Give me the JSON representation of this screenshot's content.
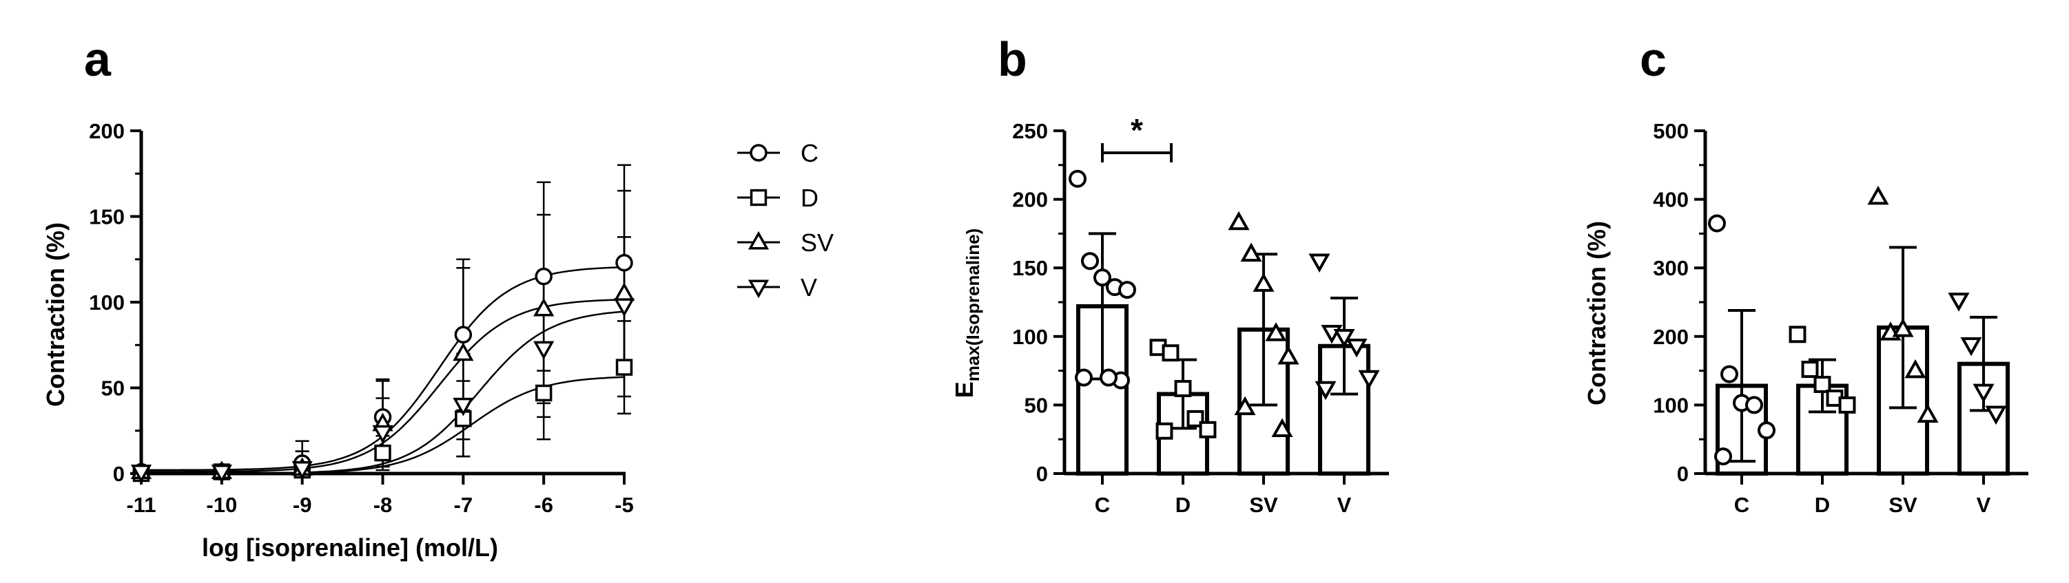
{
  "chart_data": [
    {
      "panel": "a",
      "type": "line",
      "xlabel": "log [isoprenaline] (mol/L)",
      "ylabel": "Contraction (%)",
      "xlim": [
        -11,
        -5
      ],
      "ylim": [
        0,
        200
      ],
      "x_ticks": [
        "-11",
        "-10",
        "-9",
        "-8",
        "-7",
        "-6",
        "-5"
      ],
      "y_ticks": [
        "0",
        "50",
        "100",
        "150",
        "200"
      ],
      "legend_position": "right",
      "x": [
        -11,
        -10,
        -9,
        -8,
        -7,
        -6,
        -5
      ],
      "series": [
        {
          "name": "C",
          "marker": "circle",
          "values": [
            1,
            1,
            6,
            33,
            81,
            115,
            123
          ],
          "errors": [
            1,
            1,
            13,
            22,
            44,
            55,
            57
          ],
          "fit": {
            "bottom": 2,
            "top": 121,
            "logEC50": -7.3,
            "hill": 1
          }
        },
        {
          "name": "D",
          "marker": "square",
          "values": [
            0,
            1,
            2,
            12,
            32,
            47,
            62
          ],
          "errors": [
            1,
            1,
            3,
            10,
            22,
            27,
            27
          ],
          "fit": {
            "bottom": 0,
            "top": 57,
            "logEC50": -6.9,
            "hill": 1
          }
        },
        {
          "name": "SV",
          "marker": "triangle-up",
          "values": [
            1,
            1,
            3,
            29,
            70,
            96,
            105
          ],
          "errors": [
            1,
            1,
            10,
            25,
            50,
            55,
            60
          ],
          "fit": {
            "bottom": 1,
            "top": 102,
            "logEC50": -7.3,
            "hill": 1
          }
        },
        {
          "name": "V",
          "marker": "triangle-down",
          "values": [
            1,
            1,
            3,
            24,
            40,
            73,
            98
          ],
          "errors": [
            1,
            1,
            10,
            20,
            30,
            40,
            40
          ],
          "fit": {
            "bottom": 0,
            "top": 96,
            "logEC50": -6.8,
            "hill": 1
          }
        }
      ]
    },
    {
      "panel": "b",
      "type": "bar",
      "ylabel_main": "E",
      "ylabel_sub": "max(Isoprenaline)",
      "ylim": [
        0,
        250
      ],
      "y_ticks": [
        "0",
        "50",
        "100",
        "150",
        "200",
        "250"
      ],
      "categories": [
        "C",
        "D",
        "SV",
        "V"
      ],
      "markers": [
        "circle",
        "square",
        "triangle-up",
        "triangle-down"
      ],
      "values": [
        122,
        58,
        105,
        93
      ],
      "errors": [
        53,
        25,
        55,
        35
      ],
      "points": [
        [
          215,
          155,
          143,
          136,
          134,
          70,
          68,
          70
        ],
        [
          92,
          88,
          62,
          40,
          32,
          31
        ],
        [
          183,
          160,
          138,
          102,
          85,
          48,
          32
        ],
        [
          155,
          103,
          100,
          93,
          70,
          62
        ]
      ],
      "significance": {
        "from": "C",
        "to": "D",
        "label": "*"
      }
    },
    {
      "panel": "c",
      "type": "bar",
      "ylabel": "Contraction (%)",
      "ylim": [
        0,
        500
      ],
      "y_ticks": [
        "0",
        "100",
        "200",
        "300",
        "400",
        "500"
      ],
      "categories": [
        "C",
        "D",
        "SV",
        "V"
      ],
      "markers": [
        "circle",
        "square",
        "triangle-up",
        "triangle-down"
      ],
      "values": [
        128,
        128,
        213,
        160
      ],
      "errors": [
        110,
        38,
        117,
        68
      ],
      "points": [
        [
          365,
          145,
          103,
          100,
          63,
          25
        ],
        [
          203,
          152,
          130,
          110,
          100
        ],
        [
          403,
          205,
          210,
          150,
          85
        ],
        [
          253,
          188,
          120,
          88
        ]
      ]
    }
  ]
}
